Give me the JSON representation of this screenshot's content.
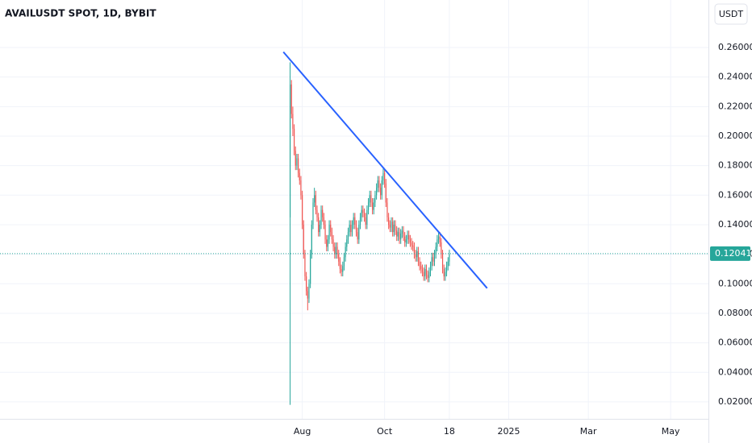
{
  "chart_data": {
    "type": "candlestick",
    "title": "AVAILUSDT SPOT, 1D, BYBIT",
    "currency": "USDT",
    "up_color": "#26a69a",
    "down_color": "#ef5350",
    "grid": true,
    "ylim": [
      0.0085,
      0.2922
    ],
    "yticks": [
      {
        "value": 0.02,
        "label": "0.02000"
      },
      {
        "value": 0.04,
        "label": "0.04000"
      },
      {
        "value": 0.06,
        "label": "0.06000"
      },
      {
        "value": 0.08,
        "label": "0.08000"
      },
      {
        "value": 0.1,
        "label": "0.10000"
      },
      {
        "value": 0.12,
        "label": "0.12000"
      },
      {
        "value": 0.14,
        "label": "0.14000"
      },
      {
        "value": 0.16,
        "label": "0.16000"
      },
      {
        "value": 0.18,
        "label": "0.18000"
      },
      {
        "value": 0.2,
        "label": "0.20000"
      },
      {
        "value": 0.22,
        "label": "0.22000"
      },
      {
        "value": 0.24,
        "label": "0.24000"
      },
      {
        "value": 0.26,
        "label": "0.26000"
      }
    ],
    "xlim": [
      "2023-12-21",
      "2025-05-29"
    ],
    "xticks": [
      {
        "value": "2024-08-01",
        "label": "Aug"
      },
      {
        "value": "2024-10-01",
        "label": "Oct"
      },
      {
        "value": "2024-11-18",
        "label": "18"
      },
      {
        "value": "2025-01-01",
        "label": "2025"
      },
      {
        "value": "2025-03-01",
        "label": "Mar"
      },
      {
        "value": "2025-05-01",
        "label": "May"
      }
    ],
    "last_price": 0.12041,
    "last_price_color": "#26a69a",
    "trendline": {
      "x": [
        "2024-07-18",
        "2024-12-16"
      ],
      "y": [
        0.257,
        0.097
      ],
      "color": "#2962ff"
    },
    "x": [
      "2024-07-23",
      "2024-07-24",
      "2024-07-25",
      "2024-07-26",
      "2024-07-27",
      "2024-07-28",
      "2024-07-29",
      "2024-07-30",
      "2024-07-31",
      "2024-08-01",
      "2024-08-02",
      "2024-08-03",
      "2024-08-04",
      "2024-08-05",
      "2024-08-06",
      "2024-08-07",
      "2024-08-08",
      "2024-08-09",
      "2024-08-10",
      "2024-08-11",
      "2024-08-12",
      "2024-08-13",
      "2024-08-14",
      "2024-08-15",
      "2024-08-16",
      "2024-08-17",
      "2024-08-18",
      "2024-08-19",
      "2024-08-20",
      "2024-08-21",
      "2024-08-22",
      "2024-08-23",
      "2024-08-24",
      "2024-08-25",
      "2024-08-26",
      "2024-08-27",
      "2024-08-28",
      "2024-08-29",
      "2024-08-30",
      "2024-08-31",
      "2024-09-01",
      "2024-09-02",
      "2024-09-03",
      "2024-09-04",
      "2024-09-05",
      "2024-09-06",
      "2024-09-07",
      "2024-09-08",
      "2024-09-09",
      "2024-09-10",
      "2024-09-11",
      "2024-09-12",
      "2024-09-13",
      "2024-09-14",
      "2024-09-15",
      "2024-09-16",
      "2024-09-17",
      "2024-09-18",
      "2024-09-19",
      "2024-09-20",
      "2024-09-21",
      "2024-09-22",
      "2024-09-23",
      "2024-09-24",
      "2024-09-25",
      "2024-09-26",
      "2024-09-27",
      "2024-09-28",
      "2024-09-29",
      "2024-09-30",
      "2024-10-01",
      "2024-10-02",
      "2024-10-03",
      "2024-10-04",
      "2024-10-05",
      "2024-10-06",
      "2024-10-07",
      "2024-10-08",
      "2024-10-09",
      "2024-10-10",
      "2024-10-11",
      "2024-10-12",
      "2024-10-13",
      "2024-10-14",
      "2024-10-15",
      "2024-10-16",
      "2024-10-17",
      "2024-10-18",
      "2024-10-19",
      "2024-10-20",
      "2024-10-21",
      "2024-10-22",
      "2024-10-23",
      "2024-10-24",
      "2024-10-25",
      "2024-10-26",
      "2024-10-27",
      "2024-10-28",
      "2024-10-29",
      "2024-10-30",
      "2024-10-31",
      "2024-11-01",
      "2024-11-02",
      "2024-11-03",
      "2024-11-04",
      "2024-11-05",
      "2024-11-06",
      "2024-11-07",
      "2024-11-08",
      "2024-11-09",
      "2024-11-10",
      "2024-11-11",
      "2024-11-12",
      "2024-11-13",
      "2024-11-14",
      "2024-11-15",
      "2024-11-16",
      "2024-11-17",
      "2024-11-18"
    ],
    "ohlc": [
      [
        0.145,
        0.25,
        0.018,
        0.235
      ],
      [
        0.235,
        0.238,
        0.212,
        0.215
      ],
      [
        0.215,
        0.22,
        0.2,
        0.205
      ],
      [
        0.205,
        0.208,
        0.187,
        0.19
      ],
      [
        0.19,
        0.193,
        0.177,
        0.18
      ],
      [
        0.18,
        0.188,
        0.177,
        0.185
      ],
      [
        0.185,
        0.188,
        0.172,
        0.175
      ],
      [
        0.175,
        0.178,
        0.167,
        0.17
      ],
      [
        0.17,
        0.173,
        0.157,
        0.16
      ],
      [
        0.16,
        0.163,
        0.137,
        0.14
      ],
      [
        0.14,
        0.143,
        0.117,
        0.12
      ],
      [
        0.12,
        0.123,
        0.102,
        0.105
      ],
      [
        0.105,
        0.108,
        0.092,
        0.095
      ],
      [
        0.095,
        0.098,
        0.082,
        0.09
      ],
      [
        0.09,
        0.103,
        0.087,
        0.1
      ],
      [
        0.1,
        0.123,
        0.097,
        0.12
      ],
      [
        0.12,
        0.143,
        0.117,
        0.14
      ],
      [
        0.14,
        0.158,
        0.137,
        0.155
      ],
      [
        0.155,
        0.165,
        0.152,
        0.16
      ],
      [
        0.16,
        0.163,
        0.147,
        0.15
      ],
      [
        0.15,
        0.153,
        0.142,
        0.145
      ],
      [
        0.145,
        0.148,
        0.132,
        0.135
      ],
      [
        0.135,
        0.143,
        0.132,
        0.14
      ],
      [
        0.14,
        0.153,
        0.137,
        0.15
      ],
      [
        0.15,
        0.153,
        0.142,
        0.145
      ],
      [
        0.145,
        0.148,
        0.137,
        0.14
      ],
      [
        0.14,
        0.143,
        0.127,
        0.13
      ],
      [
        0.13,
        0.133,
        0.122,
        0.125
      ],
      [
        0.125,
        0.133,
        0.122,
        0.13
      ],
      [
        0.13,
        0.143,
        0.127,
        0.14
      ],
      [
        0.14,
        0.143,
        0.132,
        0.135
      ],
      [
        0.135,
        0.138,
        0.127,
        0.13
      ],
      [
        0.13,
        0.133,
        0.122,
        0.125
      ],
      [
        0.125,
        0.128,
        0.117,
        0.12
      ],
      [
        0.12,
        0.128,
        0.117,
        0.125
      ],
      [
        0.125,
        0.128,
        0.117,
        0.12
      ],
      [
        0.12,
        0.123,
        0.112,
        0.115
      ],
      [
        0.115,
        0.118,
        0.107,
        0.11
      ],
      [
        0.11,
        0.113,
        0.105,
        0.108
      ],
      [
        0.108,
        0.115,
        0.105,
        0.112
      ],
      [
        0.112,
        0.121,
        0.109,
        0.118
      ],
      [
        0.118,
        0.128,
        0.115,
        0.125
      ],
      [
        0.125,
        0.133,
        0.122,
        0.13
      ],
      [
        0.13,
        0.138,
        0.127,
        0.135
      ],
      [
        0.135,
        0.143,
        0.132,
        0.14
      ],
      [
        0.14,
        0.143,
        0.132,
        0.135
      ],
      [
        0.135,
        0.143,
        0.132,
        0.14
      ],
      [
        0.14,
        0.148,
        0.137,
        0.145
      ],
      [
        0.145,
        0.148,
        0.137,
        0.14
      ],
      [
        0.14,
        0.143,
        0.132,
        0.135
      ],
      [
        0.135,
        0.138,
        0.127,
        0.13
      ],
      [
        0.13,
        0.143,
        0.127,
        0.14
      ],
      [
        0.14,
        0.148,
        0.137,
        0.145
      ],
      [
        0.145,
        0.153,
        0.142,
        0.15
      ],
      [
        0.15,
        0.153,
        0.145,
        0.148
      ],
      [
        0.148,
        0.151,
        0.142,
        0.145
      ],
      [
        0.145,
        0.148,
        0.137,
        0.14
      ],
      [
        0.14,
        0.153,
        0.137,
        0.15
      ],
      [
        0.15,
        0.158,
        0.147,
        0.155
      ],
      [
        0.155,
        0.163,
        0.152,
        0.16
      ],
      [
        0.16,
        0.163,
        0.152,
        0.155
      ],
      [
        0.155,
        0.158,
        0.147,
        0.15
      ],
      [
        0.15,
        0.158,
        0.147,
        0.155
      ],
      [
        0.155,
        0.163,
        0.152,
        0.16
      ],
      [
        0.16,
        0.168,
        0.157,
        0.165
      ],
      [
        0.165,
        0.173,
        0.162,
        0.17
      ],
      [
        0.17,
        0.173,
        0.162,
        0.165
      ],
      [
        0.165,
        0.168,
        0.157,
        0.16
      ],
      [
        0.16,
        0.173,
        0.157,
        0.17
      ],
      [
        0.17,
        0.178,
        0.167,
        0.175
      ],
      [
        0.175,
        0.178,
        0.165,
        0.168
      ],
      [
        0.168,
        0.171,
        0.152,
        0.155
      ],
      [
        0.155,
        0.158,
        0.142,
        0.145
      ],
      [
        0.145,
        0.148,
        0.137,
        0.14
      ],
      [
        0.14,
        0.143,
        0.135,
        0.138
      ],
      [
        0.138,
        0.145,
        0.135,
        0.142
      ],
      [
        0.142,
        0.145,
        0.132,
        0.135
      ],
      [
        0.135,
        0.143,
        0.132,
        0.14
      ],
      [
        0.14,
        0.143,
        0.133,
        0.136
      ],
      [
        0.136,
        0.139,
        0.129,
        0.132
      ],
      [
        0.132,
        0.138,
        0.129,
        0.135
      ],
      [
        0.135,
        0.138,
        0.127,
        0.13
      ],
      [
        0.13,
        0.137,
        0.127,
        0.134
      ],
      [
        0.134,
        0.139,
        0.131,
        0.136
      ],
      [
        0.136,
        0.139,
        0.129,
        0.132
      ],
      [
        0.132,
        0.135,
        0.125,
        0.128
      ],
      [
        0.128,
        0.133,
        0.125,
        0.13
      ],
      [
        0.13,
        0.136,
        0.127,
        0.133
      ],
      [
        0.133,
        0.136,
        0.127,
        0.13
      ],
      [
        0.13,
        0.133,
        0.125,
        0.128
      ],
      [
        0.128,
        0.131,
        0.123,
        0.126
      ],
      [
        0.126,
        0.129,
        0.122,
        0.125
      ],
      [
        0.125,
        0.128,
        0.117,
        0.12
      ],
      [
        0.12,
        0.123,
        0.115,
        0.118
      ],
      [
        0.118,
        0.125,
        0.115,
        0.122
      ],
      [
        0.122,
        0.125,
        0.112,
        0.115
      ],
      [
        0.115,
        0.118,
        0.109,
        0.112
      ],
      [
        0.112,
        0.115,
        0.107,
        0.11
      ],
      [
        0.11,
        0.113,
        0.105,
        0.108
      ],
      [
        0.108,
        0.111,
        0.102,
        0.105
      ],
      [
        0.105,
        0.113,
        0.102,
        0.11
      ],
      [
        0.11,
        0.113,
        0.103,
        0.106
      ],
      [
        0.106,
        0.109,
        0.101,
        0.104
      ],
      [
        0.104,
        0.111,
        0.101,
        0.108
      ],
      [
        0.108,
        0.115,
        0.105,
        0.112
      ],
      [
        0.112,
        0.121,
        0.109,
        0.118
      ],
      [
        0.118,
        0.121,
        0.112,
        0.115
      ],
      [
        0.115,
        0.123,
        0.112,
        0.12
      ],
      [
        0.12,
        0.128,
        0.117,
        0.125
      ],
      [
        0.125,
        0.133,
        0.122,
        0.13
      ],
      [
        0.13,
        0.135,
        0.127,
        0.132
      ],
      [
        0.132,
        0.135,
        0.125,
        0.128
      ],
      [
        0.128,
        0.131,
        0.117,
        0.12
      ],
      [
        0.12,
        0.123,
        0.107,
        0.11
      ],
      [
        0.11,
        0.113,
        0.102,
        0.105
      ],
      [
        0.105,
        0.111,
        0.102,
        0.108
      ],
      [
        0.108,
        0.115,
        0.105,
        0.112
      ],
      [
        0.112,
        0.118,
        0.109,
        0.115
      ],
      [
        0.115,
        0.123,
        0.112,
        0.12
      ]
    ]
  }
}
